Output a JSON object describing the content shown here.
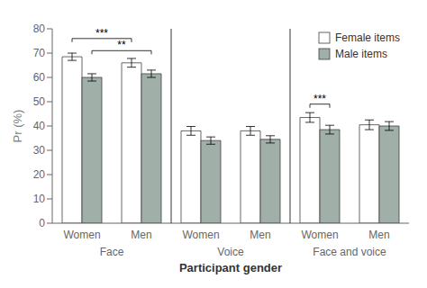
{
  "chart_data": {
    "type": "bar",
    "categories": [
      "Women",
      "Men",
      "Women",
      "Men",
      "Women",
      "Men"
    ],
    "category_groups": [
      "Face",
      "Voice",
      "Face and voice"
    ],
    "series": [
      {
        "name": "Female items",
        "color": "#ffffff",
        "values": [
          68.5,
          66.0,
          38.0,
          38.0,
          43.5,
          40.5
        ],
        "errors": [
          1.5,
          1.8,
          1.8,
          1.8,
          2.0,
          2.0
        ]
      },
      {
        "name": "Male items",
        "color": "#a0b0a8",
        "values": [
          60.0,
          61.5,
          34.0,
          34.5,
          38.5,
          40.0
        ],
        "errors": [
          1.5,
          1.5,
          1.5,
          1.5,
          1.8,
          1.8
        ]
      }
    ],
    "edge_color": "#404040",
    "xlabel": "Participant gender",
    "ylabel": "Pr (%)",
    "ylim": [
      0,
      80
    ],
    "yticks": [
      0,
      10,
      20,
      30,
      40,
      50,
      60,
      70,
      80
    ],
    "grid": false,
    "legend": "upper right",
    "annotations": [
      {
        "text": "***",
        "y": 76,
        "from": {
          "category": 0,
          "series": "Female items"
        },
        "to": {
          "category": 1,
          "series": "Female items"
        }
      },
      {
        "text": "**",
        "y": 71,
        "from": {
          "category": 0,
          "series": "Male items"
        },
        "to": {
          "category": 1,
          "series": "Male items"
        }
      },
      {
        "text": "***",
        "y": 49,
        "from": {
          "category": 4,
          "series": "Female items"
        },
        "to": {
          "category": 4,
          "series": "Male items"
        }
      }
    ]
  }
}
